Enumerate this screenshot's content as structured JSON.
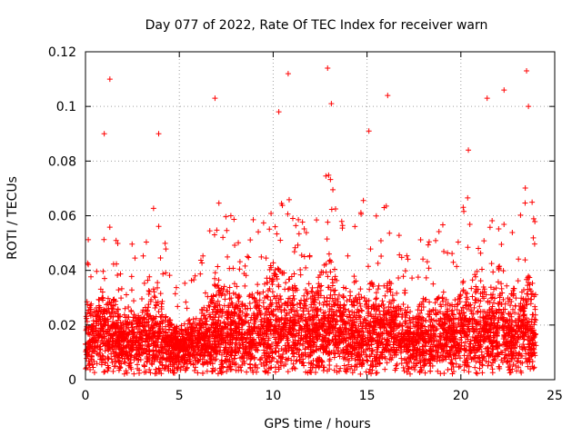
{
  "chart_data": {
    "type": "scatter",
    "title": "Day 077 of 2022, Rate Of TEC Index for receiver warn",
    "xlabel": "GPS time / hours",
    "ylabel": "ROTI / TECUs",
    "xlim": [
      0,
      25
    ],
    "ylim": [
      0,
      0.12
    ],
    "x_ticks": [
      0,
      5,
      10,
      15,
      20,
      25
    ],
    "y_ticks": [
      0,
      0.02,
      0.04,
      0.06,
      0.08,
      0.1,
      0.12
    ],
    "x_tick_labels": [
      "0",
      "5",
      "10",
      "15",
      "20",
      "25"
    ],
    "y_tick_labels": [
      "0",
      "0.02",
      "0.04",
      "0.06",
      "0.08",
      "0.1",
      "0.12"
    ],
    "grid": true,
    "legend": "none",
    "marker": "+",
    "color": "#ff0000",
    "notable_points": [
      {
        "x": 1.3,
        "y": 0.11
      },
      {
        "x": 10.8,
        "y": 0.112
      },
      {
        "x": 12.9,
        "y": 0.114
      },
      {
        "x": 13.1,
        "y": 0.101
      },
      {
        "x": 16.1,
        "y": 0.104
      },
      {
        "x": 22.3,
        "y": 0.106
      },
      {
        "x": 23.5,
        "y": 0.113
      },
      {
        "x": 6.9,
        "y": 0.103
      },
      {
        "x": 21.4,
        "y": 0.103
      },
      {
        "x": 3.9,
        "y": 0.09
      },
      {
        "x": 1.0,
        "y": 0.09
      },
      {
        "x": 10.3,
        "y": 0.098
      },
      {
        "x": 15.1,
        "y": 0.091
      },
      {
        "x": 20.4,
        "y": 0.084
      },
      {
        "x": 23.6,
        "y": 0.1
      }
    ],
    "envelope": {
      "hours": [
        0,
        0.5,
        1,
        1.5,
        2,
        2.5,
        3,
        3.5,
        4,
        4.5,
        5,
        5.5,
        6,
        6.5,
        7,
        7.5,
        8,
        8.5,
        9,
        9.5,
        10,
        10.5,
        11,
        11.5,
        12,
        12.5,
        13,
        13.5,
        14,
        14.5,
        15,
        15.5,
        16,
        16.5,
        17,
        17.5,
        18,
        18.5,
        19,
        19.5,
        20,
        20.5,
        21,
        21.5,
        22,
        22.5,
        23,
        23.5,
        24
      ],
      "typical_max": [
        0.055,
        0.045,
        0.07,
        0.06,
        0.04,
        0.05,
        0.045,
        0.065,
        0.06,
        0.04,
        0.035,
        0.04,
        0.045,
        0.05,
        0.07,
        0.06,
        0.065,
        0.055,
        0.06,
        0.065,
        0.08,
        0.075,
        0.07,
        0.06,
        0.065,
        0.07,
        0.085,
        0.065,
        0.06,
        0.055,
        0.075,
        0.06,
        0.07,
        0.06,
        0.05,
        0.045,
        0.055,
        0.05,
        0.06,
        0.05,
        0.065,
        0.07,
        0.06,
        0.065,
        0.06,
        0.055,
        0.065,
        0.075,
        0.06
      ],
      "median": [
        0.015,
        0.014,
        0.018,
        0.016,
        0.013,
        0.014,
        0.014,
        0.016,
        0.015,
        0.012,
        0.011,
        0.012,
        0.013,
        0.014,
        0.017,
        0.016,
        0.017,
        0.016,
        0.016,
        0.017,
        0.019,
        0.018,
        0.018,
        0.016,
        0.017,
        0.018,
        0.02,
        0.017,
        0.016,
        0.015,
        0.018,
        0.016,
        0.017,
        0.016,
        0.014,
        0.013,
        0.015,
        0.014,
        0.016,
        0.014,
        0.016,
        0.017,
        0.016,
        0.016,
        0.016,
        0.015,
        0.016,
        0.018,
        0.015
      ],
      "floor": 0.002
    }
  }
}
